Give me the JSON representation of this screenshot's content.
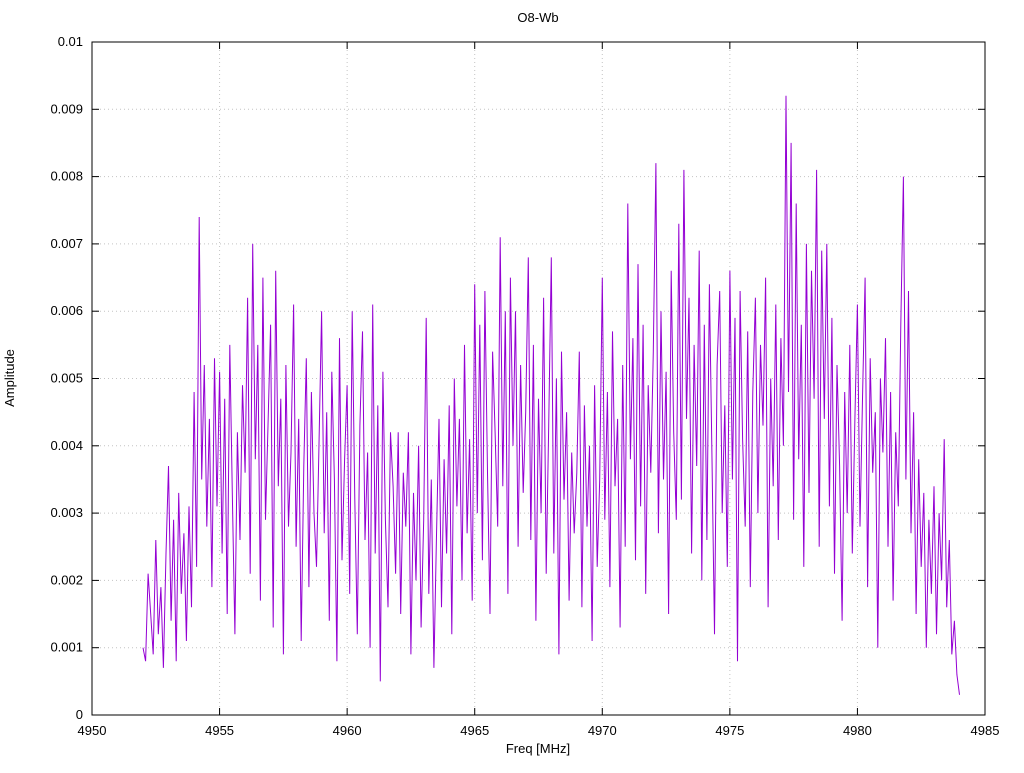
{
  "chart_data": {
    "type": "line",
    "title": "O8-Wb",
    "xlabel": "Freq [MHz]",
    "ylabel": "Amplitude",
    "xlim": [
      4950,
      4985
    ],
    "ylim": [
      0,
      0.01
    ],
    "x_ticks": [
      4950,
      4955,
      4960,
      4965,
      4970,
      4975,
      4980,
      4985
    ],
    "x_tick_labels": [
      "4950",
      "4955",
      "4960",
      "4965",
      "4970",
      "4975",
      "4980",
      "4985"
    ],
    "y_ticks": [
      0,
      0.001,
      0.002,
      0.003,
      0.004,
      0.005,
      0.006,
      0.007,
      0.008,
      0.009,
      0.01
    ],
    "y_tick_labels": [
      "0",
      "0.001",
      "0.002",
      "0.003",
      "0.004",
      "0.005",
      "0.006",
      "0.007",
      "0.008",
      "0.009",
      "0.01"
    ],
    "grid": "dotted",
    "legend": "none",
    "line_color": "#9400d3",
    "series": [
      {
        "name": "O8-Wb",
        "x_start": 4952.0,
        "x_step": 0.1,
        "values": [
          0.001,
          0.0008,
          0.0021,
          0.0015,
          0.0009,
          0.0026,
          0.0012,
          0.0019,
          0.0007,
          0.0024,
          0.0037,
          0.0014,
          0.0029,
          0.0008,
          0.0033,
          0.0018,
          0.0027,
          0.0011,
          0.0031,
          0.0016,
          0.0048,
          0.0022,
          0.0074,
          0.0035,
          0.0052,
          0.0028,
          0.0044,
          0.0019,
          0.0053,
          0.0031,
          0.0051,
          0.0024,
          0.0047,
          0.0015,
          0.0055,
          0.0033,
          0.0012,
          0.0042,
          0.0026,
          0.0049,
          0.0036,
          0.0062,
          0.0021,
          0.007,
          0.0038,
          0.0055,
          0.0017,
          0.0065,
          0.0029,
          0.0043,
          0.0058,
          0.0013,
          0.0066,
          0.0034,
          0.0047,
          0.0009,
          0.0052,
          0.0028,
          0.0039,
          0.0061,
          0.0025,
          0.0044,
          0.0011,
          0.0037,
          0.0053,
          0.0019,
          0.0048,
          0.003,
          0.0022,
          0.0041,
          0.006,
          0.0027,
          0.0045,
          0.0014,
          0.0051,
          0.0035,
          0.0008,
          0.0056,
          0.0023,
          0.0038,
          0.0049,
          0.0018,
          0.006,
          0.0032,
          0.0012,
          0.0043,
          0.0057,
          0.0026,
          0.0039,
          0.001,
          0.0061,
          0.0024,
          0.0046,
          0.0005,
          0.0051,
          0.0029,
          0.0016,
          0.0042,
          0.0034,
          0.0021,
          0.0042,
          0.0015,
          0.0036,
          0.0028,
          0.0042,
          0.0009,
          0.0033,
          0.002,
          0.004,
          0.0013,
          0.0029,
          0.0059,
          0.0018,
          0.0035,
          0.0007,
          0.0026,
          0.0044,
          0.0016,
          0.0038,
          0.0024,
          0.0046,
          0.0012,
          0.005,
          0.0031,
          0.0044,
          0.002,
          0.0055,
          0.0027,
          0.0041,
          0.0017,
          0.0064,
          0.003,
          0.0058,
          0.0023,
          0.0063,
          0.0036,
          0.0015,
          0.0054,
          0.0042,
          0.0028,
          0.0071,
          0.0034,
          0.006,
          0.0018,
          0.0065,
          0.004,
          0.006,
          0.0025,
          0.0052,
          0.0033,
          0.0045,
          0.0068,
          0.0026,
          0.0055,
          0.0014,
          0.0047,
          0.003,
          0.0062,
          0.0021,
          0.0043,
          0.0068,
          0.0024,
          0.005,
          0.0009,
          0.0054,
          0.0032,
          0.0045,
          0.0017,
          0.0039,
          0.0027,
          0.0036,
          0.0054,
          0.0016,
          0.0046,
          0.0028,
          0.004,
          0.0011,
          0.0049,
          0.0022,
          0.0035,
          0.0065,
          0.0029,
          0.0048,
          0.0019,
          0.0057,
          0.0034,
          0.0044,
          0.0013,
          0.0052,
          0.0025,
          0.0076,
          0.0038,
          0.0056,
          0.0023,
          0.0067,
          0.0031,
          0.0058,
          0.0018,
          0.0049,
          0.0036,
          0.0054,
          0.0082,
          0.0027,
          0.006,
          0.0035,
          0.0051,
          0.0015,
          0.0066,
          0.0042,
          0.0029,
          0.0073,
          0.0032,
          0.0081,
          0.0044,
          0.0062,
          0.0024,
          0.0055,
          0.0037,
          0.0069,
          0.002,
          0.0058,
          0.0026,
          0.0064,
          0.0038,
          0.0012,
          0.0052,
          0.0063,
          0.003,
          0.0046,
          0.0022,
          0.0066,
          0.0035,
          0.0059,
          0.0008,
          0.0063,
          0.0041,
          0.0028,
          0.0057,
          0.0019,
          0.0048,
          0.0062,
          0.003,
          0.0055,
          0.0043,
          0.0065,
          0.0016,
          0.005,
          0.0034,
          0.0061,
          0.0026,
          0.0056,
          0.004,
          0.0092,
          0.0048,
          0.0085,
          0.0029,
          0.0076,
          0.0038,
          0.0058,
          0.0022,
          0.007,
          0.0033,
          0.0066,
          0.0047,
          0.0081,
          0.0025,
          0.0069,
          0.0044,
          0.007,
          0.0031,
          0.0059,
          0.0021,
          0.0052,
          0.0037,
          0.0014,
          0.0048,
          0.003,
          0.0055,
          0.0024,
          0.0044,
          0.0061,
          0.0028,
          0.0047,
          0.0065,
          0.0019,
          0.0053,
          0.0036,
          0.0045,
          0.001,
          0.005,
          0.0039,
          0.0056,
          0.0025,
          0.0048,
          0.0017,
          0.0042,
          0.0031,
          0.0058,
          0.008,
          0.0035,
          0.0063,
          0.0027,
          0.0045,
          0.0015,
          0.0038,
          0.0022,
          0.0033,
          0.001,
          0.0029,
          0.0018,
          0.0034,
          0.0012,
          0.003,
          0.002,
          0.0041,
          0.0016,
          0.0026,
          0.0009,
          0.0014,
          0.0006,
          0.0003
        ]
      }
    ]
  }
}
